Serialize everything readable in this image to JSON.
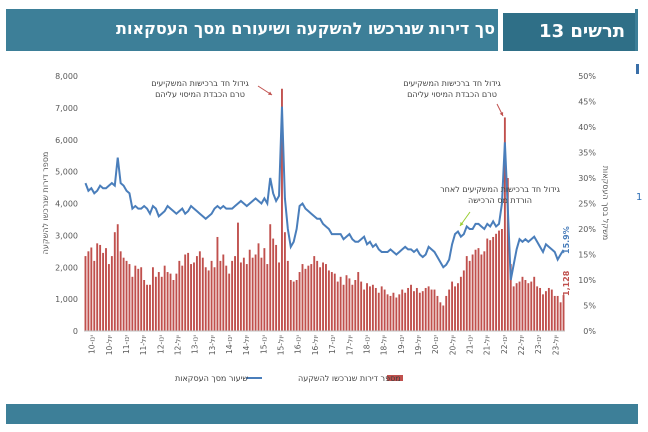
{
  "header": {
    "title": "סך דירות שנרכשו להשקעה ושיעורם מסך העסקאות",
    "figure_label": "תרשים 13"
  },
  "side_text": "1",
  "chart_data": {
    "type": "bar+line",
    "title": "",
    "y_left_label": "מספר דירות שנרכשו להשקעה",
    "y_right_label": "משקל בסך העסקאות",
    "y_left_ticks": [
      "0",
      "1,000",
      "2,000",
      "3,000",
      "4,000",
      "5,000",
      "6,000",
      "7,000",
      "8,000"
    ],
    "y_right_ticks": [
      "0%",
      "5%",
      "10%",
      "15%",
      "20%",
      "25%",
      "30%",
      "35%",
      "40%",
      "45%",
      "50%"
    ],
    "ylim_left": [
      0,
      8000
    ],
    "ylim_right": [
      0,
      0.5
    ],
    "x_tick_labels": [
      "ינו-10",
      "יול-10",
      "ינו-11",
      "יול-11",
      "ינו-12",
      "יול-12",
      "ינו-13",
      "יול-13",
      "ינו-14",
      "יול-14",
      "ינו-15",
      "יול-15",
      "ינו-16",
      "יול-16",
      "ינו-17",
      "יול-17",
      "ינו-18",
      "יול-18",
      "ינו-19",
      "יול-19",
      "ינו-20",
      "יול-20",
      "ינו-21",
      "יול-21",
      "ינו-22",
      "יול-22",
      "ינו-23",
      "יול-23"
    ],
    "legend": [
      "מספר דירות שנרכשו להשקעה",
      "שיעור מסך העסקאות"
    ],
    "colors": {
      "bars": "#c0504d",
      "line": "#4a7ebb",
      "axis_text": "#595959"
    },
    "annotations": [
      {
        "lines": [
          "גידול חד ברכישות המשקיעים",
          "טרם הכבדת המיסוי עליהם"
        ],
        "near_index": 67
      },
      {
        "lines": [
          "גידול חד ברכישות המשקיעים",
          "טרם הכבדת המיסוי עליהם"
        ],
        "near_index": 144
      },
      {
        "lines": [
          "גידול חד ברכישות המשקיעים לאחר",
          "הורדת מס הרכישה"
        ],
        "near_index": 125
      }
    ],
    "end_labels": {
      "bar_last": "1,128",
      "line_last": "15.9%"
    },
    "bars": [
      2350,
      2500,
      2620,
      2200,
      2750,
      2700,
      2450,
      2600,
      2100,
      2350,
      3100,
      3350,
      2500,
      2300,
      2200,
      2100,
      1700,
      2050,
      1950,
      2000,
      1600,
      1450,
      1450,
      2000,
      1700,
      1850,
      1700,
      2050,
      1850,
      1800,
      1600,
      1800,
      2200,
      2050,
      2400,
      2450,
      2100,
      2150,
      2350,
      2500,
      2300,
      2000,
      1900,
      2200,
      2000,
      2950,
      2200,
      2400,
      2050,
      1800,
      2200,
      2350,
      3400,
      2150,
      2300,
      2100,
      2550,
      2300,
      2400,
      2750,
      2300,
      2600,
      2100,
      3350,
      2900,
      2700,
      2150,
      7600,
      3100,
      2200,
      1600,
      1550,
      1600,
      1850,
      2100,
      1950,
      2050,
      2100,
      2350,
      2200,
      2000,
      2150,
      2100,
      1900,
      1850,
      1800,
      1550,
      1700,
      1450,
      1750,
      1650,
      1450,
      1600,
      1850,
      1550,
      1300,
      1500,
      1400,
      1450,
      1350,
      1200,
      1400,
      1300,
      1150,
      1100,
      1200,
      1050,
      1150,
      1300,
      1200,
      1350,
      1450,
      1250,
      1350,
      1200,
      1250,
      1350,
      1400,
      1300,
      1300,
      1100,
      900,
      800,
      1100,
      1300,
      1550,
      1400,
      1500,
      1700,
      1900,
      2350,
      2200,
      2400,
      2550,
      2600,
      2400,
      2500,
      2900,
      2850,
      2950,
      3050,
      3150,
      3200,
      6700,
      4800,
      2100,
      1400,
      1500,
      1550,
      1700,
      1600,
      1500,
      1550,
      1700,
      1400,
      1350,
      1150,
      1250,
      1350,
      1300,
      1100,
      1100,
      900,
      1128
    ],
    "line": [
      0.29,
      0.275,
      0.28,
      0.27,
      0.275,
      0.285,
      0.28,
      0.28,
      0.285,
      0.29,
      0.285,
      0.34,
      0.29,
      0.285,
      0.275,
      0.27,
      0.24,
      0.245,
      0.24,
      0.24,
      0.245,
      0.24,
      0.23,
      0.245,
      0.24,
      0.225,
      0.23,
      0.235,
      0.245,
      0.24,
      0.235,
      0.23,
      0.235,
      0.24,
      0.23,
      0.235,
      0.245,
      0.24,
      0.235,
      0.23,
      0.225,
      0.22,
      0.225,
      0.23,
      0.24,
      0.245,
      0.24,
      0.245,
      0.24,
      0.24,
      0.24,
      0.245,
      0.25,
      0.255,
      0.25,
      0.245,
      0.25,
      0.255,
      0.26,
      0.255,
      0.25,
      0.26,
      0.25,
      0.3,
      0.27,
      0.255,
      0.265,
      0.44,
      0.26,
      0.2,
      0.165,
      0.175,
      0.2,
      0.245,
      0.25,
      0.24,
      0.235,
      0.23,
      0.225,
      0.22,
      0.22,
      0.21,
      0.205,
      0.2,
      0.19,
      0.19,
      0.19,
      0.19,
      0.18,
      0.185,
      0.19,
      0.18,
      0.175,
      0.175,
      0.18,
      0.185,
      0.17,
      0.175,
      0.165,
      0.17,
      0.16,
      0.155,
      0.155,
      0.155,
      0.16,
      0.155,
      0.15,
      0.155,
      0.16,
      0.165,
      0.16,
      0.16,
      0.155,
      0.16,
      0.15,
      0.145,
      0.15,
      0.165,
      0.16,
      0.155,
      0.145,
      0.135,
      0.125,
      0.13,
      0.14,
      0.17,
      0.19,
      0.195,
      0.185,
      0.19,
      0.205,
      0.2,
      0.2,
      0.21,
      0.21,
      0.205,
      0.2,
      0.21,
      0.205,
      0.215,
      0.205,
      0.21,
      0.25,
      0.37,
      0.24,
      0.1,
      0.13,
      0.16,
      0.18,
      0.175,
      0.18,
      0.175,
      0.18,
      0.185,
      0.175,
      0.165,
      0.155,
      0.17,
      0.165,
      0.16,
      0.155,
      0.14,
      0.15,
      0.159
    ]
  }
}
